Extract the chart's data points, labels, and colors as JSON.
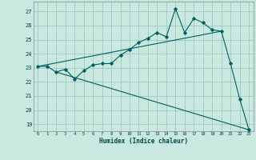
{
  "xlabel": "Humidex (Indice chaleur)",
  "ylabel": "",
  "bg_color": "#c8e8e0",
  "grid_color": "#a0c8c0",
  "line_color": "#006060",
  "xlim": [
    -0.5,
    23.5
  ],
  "ylim": [
    18.5,
    27.7
  ],
  "yticks": [
    19,
    20,
    21,
    22,
    23,
    24,
    25,
    26,
    27
  ],
  "xticks": [
    0,
    1,
    2,
    3,
    4,
    5,
    6,
    7,
    8,
    9,
    10,
    11,
    12,
    13,
    14,
    15,
    16,
    17,
    18,
    19,
    20,
    21,
    22,
    23
  ],
  "series1_x": [
    0,
    1,
    2,
    3,
    4,
    5,
    6,
    7,
    8,
    9,
    10,
    11,
    12,
    13,
    14,
    15,
    16,
    17,
    18,
    19,
    20,
    21,
    22,
    23
  ],
  "series1_y": [
    23.1,
    23.1,
    22.7,
    22.9,
    22.2,
    22.8,
    23.2,
    23.3,
    23.3,
    23.9,
    24.3,
    24.8,
    25.1,
    25.5,
    25.2,
    27.2,
    25.5,
    26.5,
    26.2,
    25.7,
    25.6,
    23.3,
    20.8,
    18.6
  ],
  "series2_x": [
    0,
    20
  ],
  "series2_y": [
    23.1,
    25.6
  ],
  "series3_x": [
    2,
    23
  ],
  "series3_y": [
    22.7,
    18.6
  ],
  "marker_style": "D",
  "marker_size": 1.8,
  "linewidth": 0.8
}
